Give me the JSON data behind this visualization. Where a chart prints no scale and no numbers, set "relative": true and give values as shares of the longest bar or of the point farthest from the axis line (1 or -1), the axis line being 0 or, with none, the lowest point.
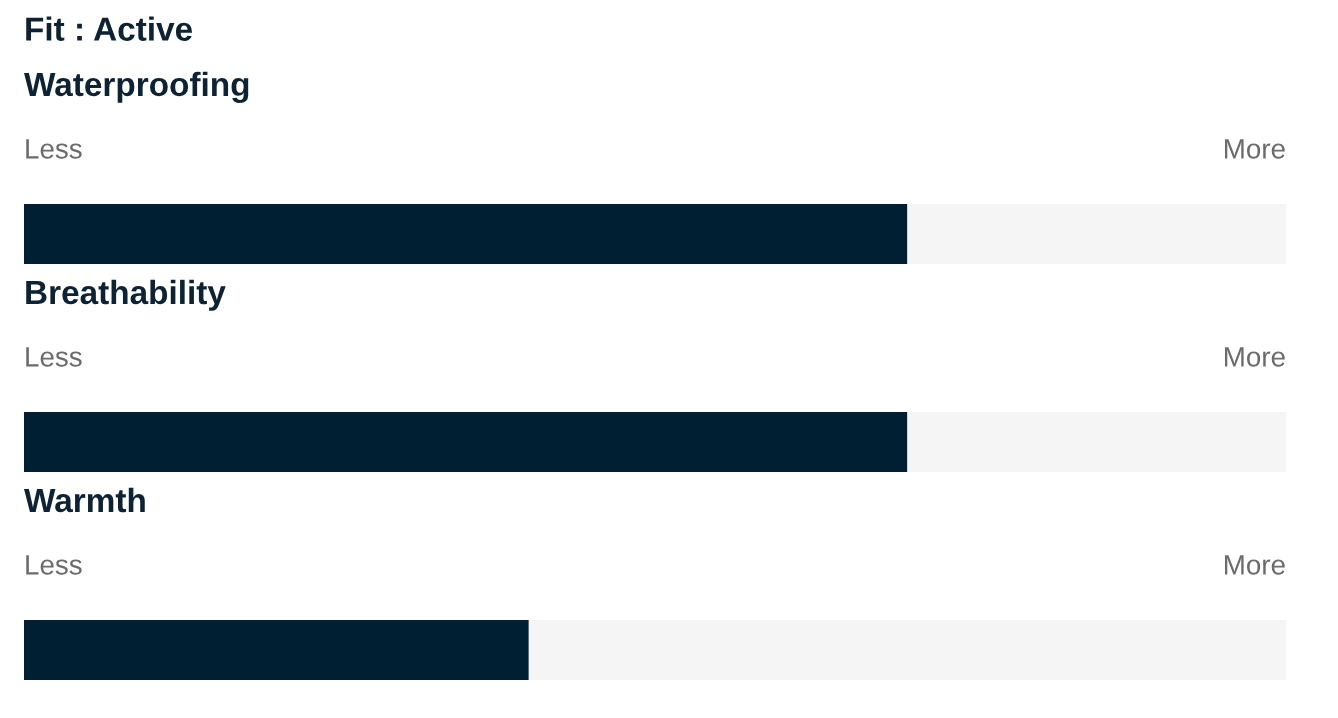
{
  "chart_data": [
    {
      "type": "other",
      "title": "Fit : Active"
    },
    {
      "type": "bar",
      "orientation": "horizontal",
      "stacked": true,
      "relative": true,
      "title": "Waterproofing",
      "categories": [
        null
      ],
      "annotations": [
        "Less",
        "More"
      ],
      "series": [
        {
          "color": "#001f33",
          "values": [
            0.7
          ]
        },
        {
          "color": "#f5f5f5",
          "values": [
            0.3
          ]
        }
      ]
    },
    {
      "type": "bar",
      "orientation": "horizontal",
      "stacked": true,
      "relative": true,
      "title": "Breathability",
      "categories": [
        null
      ],
      "annotations": [
        "Less",
        "More"
      ],
      "series": [
        {
          "color": "#001f33",
          "values": [
            0.7
          ]
        },
        {
          "color": "#f5f5f5",
          "values": [
            0.3
          ]
        }
      ]
    },
    {
      "type": "bar",
      "orientation": "horizontal",
      "stacked": true,
      "relative": true,
      "title": "Warmth",
      "categories": [
        null
      ],
      "annotations": [
        "Less",
        "More"
      ],
      "series": [
        {
          "color": "#001f33",
          "values": [
            0.4
          ]
        },
        {
          "color": "#f5f5f5",
          "values": [
            0.6
          ]
        }
      ]
    }
  ]
}
